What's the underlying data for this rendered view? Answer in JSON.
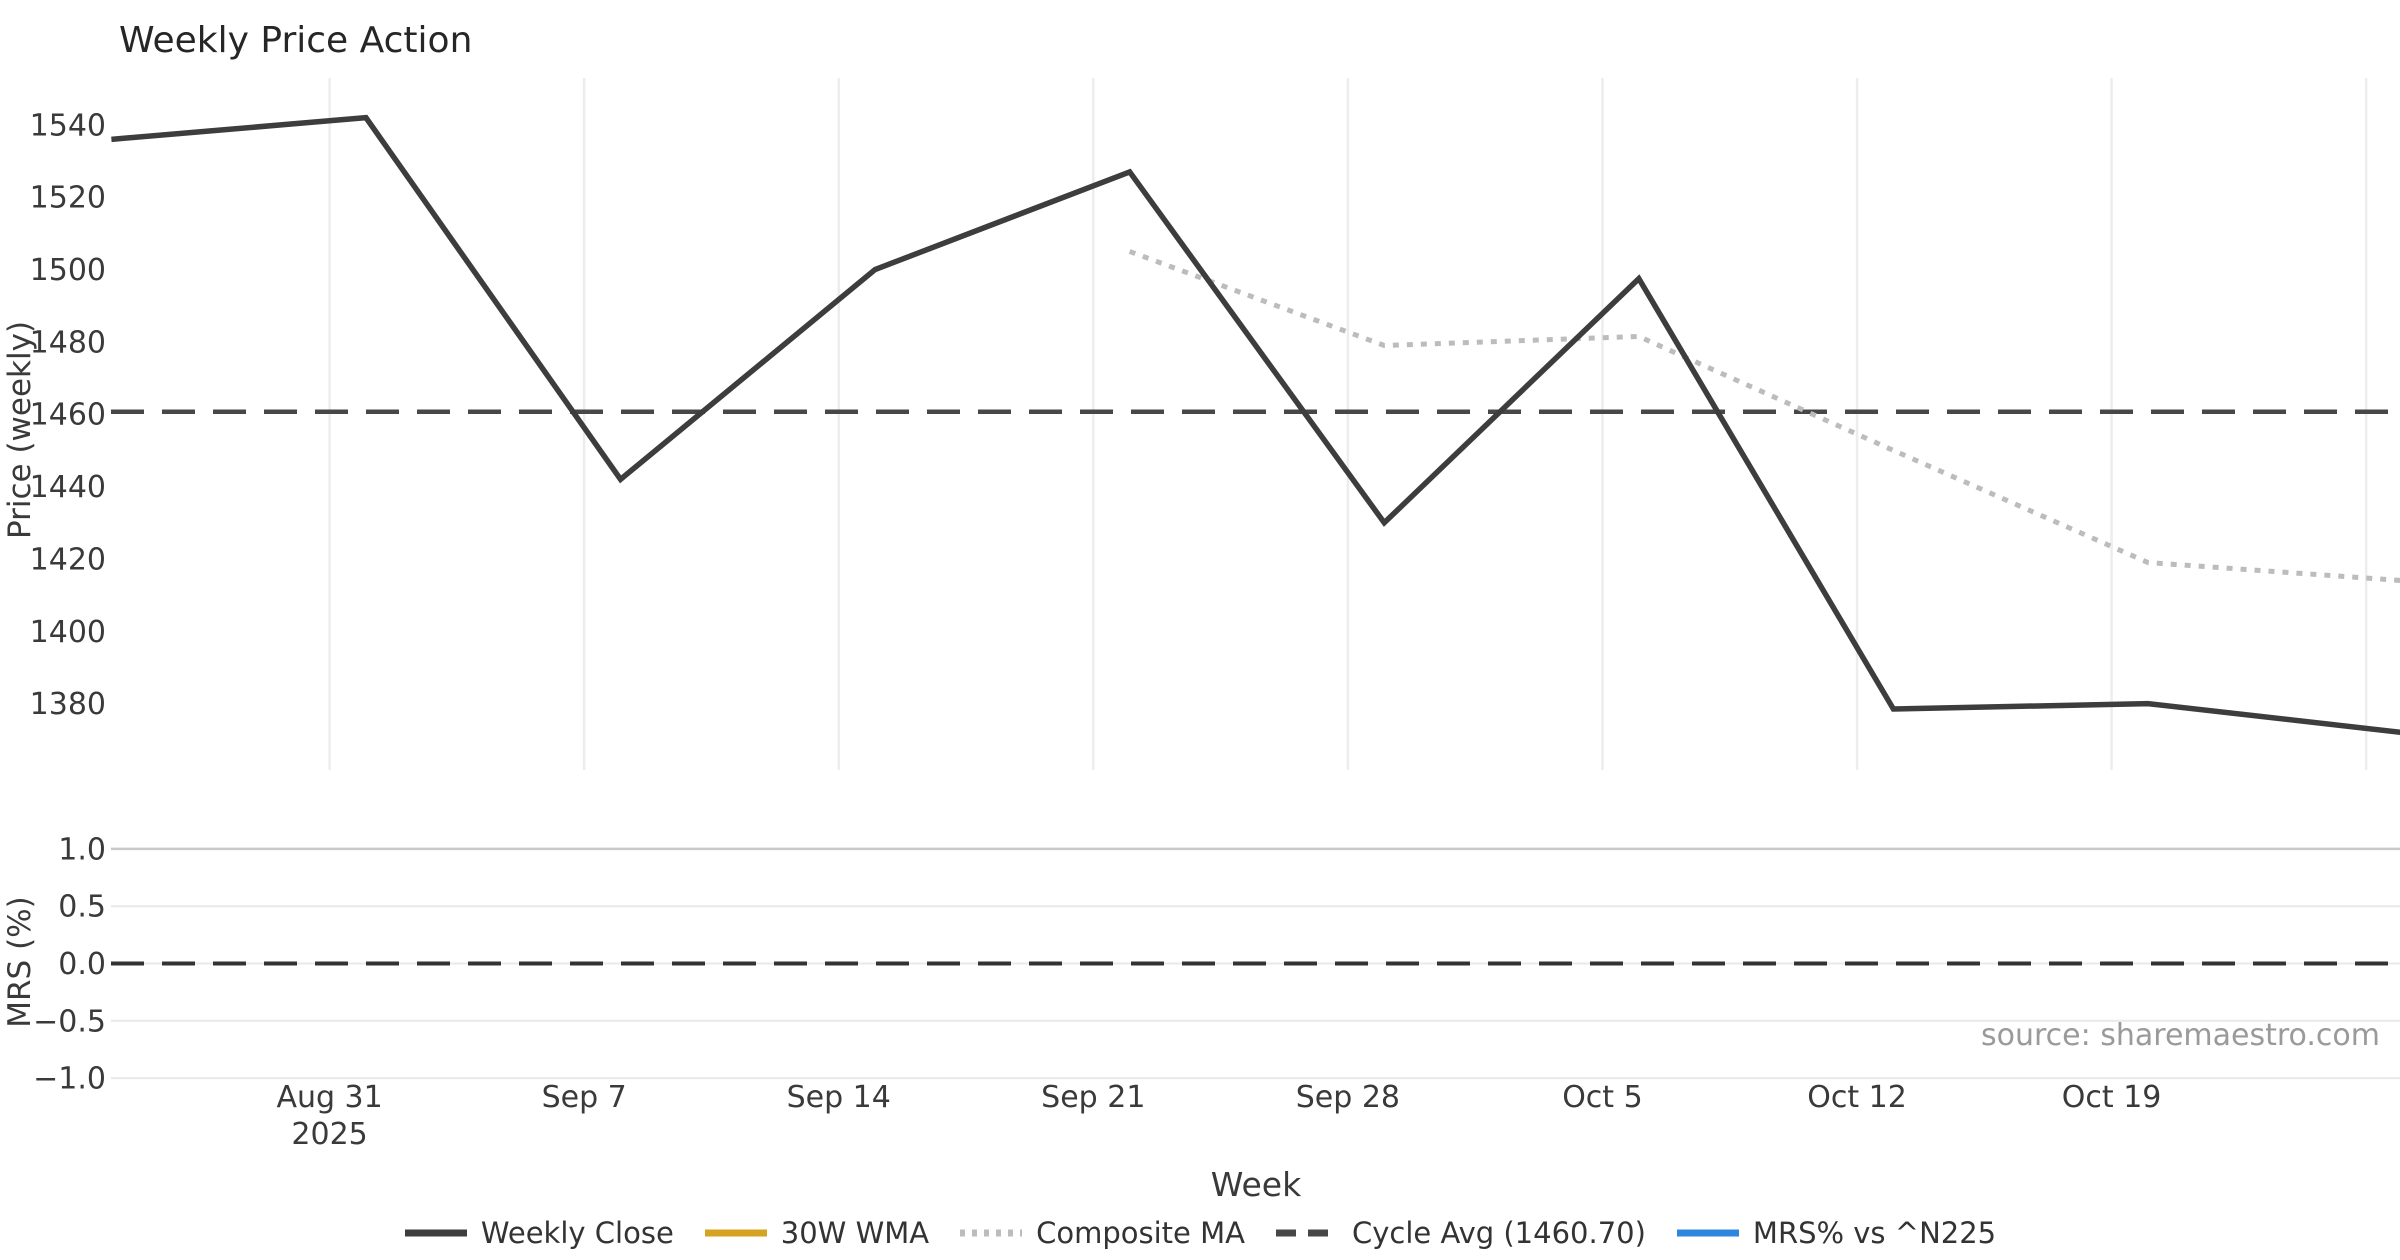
{
  "title": "Weekly Price Action",
  "source": "source: sharemaestro.com",
  "xlabel": "Week",
  "legend": [
    {
      "label": "Weekly Close",
      "color": "#3d3d3d",
      "style": "solid"
    },
    {
      "label": "30W WMA",
      "color": "#d6a321",
      "style": "solid"
    },
    {
      "label": "Composite MA",
      "color": "#bcbcbc",
      "style": "dotted"
    },
    {
      "label": "Cycle Avg (1460.70)",
      "color": "#474747",
      "style": "dashed"
    },
    {
      "label": "MRS% vs ^N225",
      "color": "#2e86de",
      "style": "solid"
    }
  ],
  "chart_data": {
    "type": "line",
    "x_unit": "week",
    "x_points": [
      "Aug 25 2025",
      "Sep 1 2025",
      "Sep 8 2025",
      "Sep 15 2025",
      "Sep 22 2025",
      "Sep 29 2025",
      "Oct 6 2025",
      "Oct 13 2025",
      "Oct 20 2025",
      "Oct 27 2025"
    ],
    "xticks": [
      {
        "label": "Aug 31",
        "sublabel": "2025"
      },
      {
        "label": "Sep 7"
      },
      {
        "label": "Sep 14"
      },
      {
        "label": "Sep 21"
      },
      {
        "label": "Sep 28"
      },
      {
        "label": "Oct 5"
      },
      {
        "label": "Oct 12"
      },
      {
        "label": "Oct 19"
      },
      {
        "label": ""
      }
    ],
    "panels": [
      {
        "name": "price",
        "ylabel": "Price (weekly)",
        "ylim": [
          1360,
          1553
        ],
        "grid": "vertical",
        "yticks": [
          {
            "value": 1540,
            "label": "1540"
          },
          {
            "value": 1520,
            "label": "1520"
          },
          {
            "value": 1500,
            "label": "1500"
          },
          {
            "value": 1480,
            "label": "1480"
          },
          {
            "value": 1460,
            "label": "1460"
          },
          {
            "value": 1440,
            "label": "1440"
          },
          {
            "value": 1420,
            "label": "1420"
          },
          {
            "value": 1400,
            "label": "1400"
          },
          {
            "value": 1380,
            "label": "1380"
          }
        ],
        "series": [
          {
            "name": "Weekly Close",
            "color": "#3d3d3d",
            "style": "solid",
            "width": 5.5,
            "values": [
              1536,
              1542,
              1442,
              1500,
              1527,
              1430,
              1497.5,
              1378.5,
              1380,
              1372
            ]
          },
          {
            "name": "Composite MA",
            "color": "#bcbcbc",
            "style": "dotted",
            "width": 5,
            "values": [
              null,
              null,
              null,
              null,
              1505,
              1479,
              1481.5,
              1450,
              1419,
              1414
            ]
          },
          {
            "name": "30W WMA",
            "color": "#d6a321",
            "style": "solid",
            "width": 5,
            "values": [
              null,
              null,
              null,
              null,
              null,
              null,
              null,
              null,
              null,
              null
            ]
          }
        ],
        "hline": {
          "name": "Cycle Avg",
          "value": 1460.7,
          "style": "dashed",
          "color": "#474747"
        }
      },
      {
        "name": "mrs",
        "ylabel": "MRS (%)",
        "ylim": [
          -1.0,
          1.0
        ],
        "grid": "horizontal",
        "yticks": [
          {
            "value": 1.0,
            "label": "1.0"
          },
          {
            "value": 0.5,
            "label": "0.5"
          },
          {
            "value": 0.0,
            "label": "0.0"
          },
          {
            "value": -0.5,
            "label": "−0.5"
          },
          {
            "value": -1.0,
            "label": "−1.0"
          }
        ],
        "series": [
          {
            "name": "MRS% vs ^N225",
            "color": "#2e86de",
            "style": "solid",
            "visible_line": false,
            "values": []
          }
        ],
        "hline": {
          "name": "zero",
          "value": 0.0,
          "style": "dashed",
          "color": "#333333"
        }
      }
    ]
  }
}
